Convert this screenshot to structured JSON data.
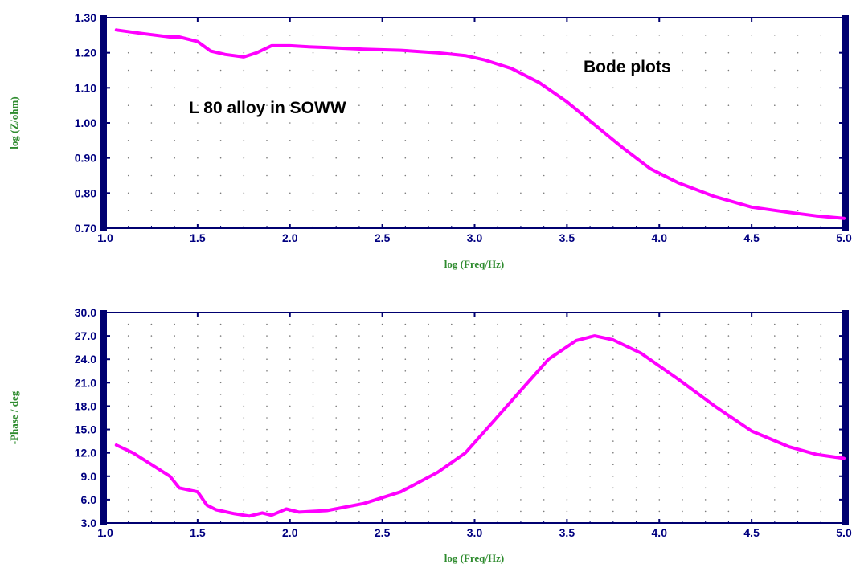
{
  "chart_data": [
    {
      "type": "line",
      "title": "",
      "xlabel": "log (Freq/Hz)",
      "ylabel": "log (Z/ohm)",
      "xlim": [
        1.0,
        5.0
      ],
      "ylim": [
        0.7,
        1.3
      ],
      "xticks": [
        "1.0",
        "1.5",
        "2.0",
        "2.5",
        "3.0",
        "3.5",
        "4.0",
        "4.5",
        "5.0"
      ],
      "yticks": [
        "0.70",
        "0.80",
        "0.90",
        "1.00",
        "1.10",
        "1.20",
        "1.30"
      ],
      "grid": true,
      "annotations": [
        "Bode plots",
        "L 80 alloy in SOWW"
      ],
      "series": [
        {
          "color": "#ff00ff",
          "x": [
            1.06,
            1.2,
            1.35,
            1.4,
            1.5,
            1.57,
            1.65,
            1.75,
            1.82,
            1.9,
            2.0,
            2.1,
            2.2,
            2.4,
            2.6,
            2.8,
            2.95,
            3.05,
            3.2,
            3.35,
            3.5,
            3.65,
            3.8,
            3.95,
            4.1,
            4.3,
            4.5,
            4.7,
            4.85,
            5.0
          ],
          "y": [
            1.265,
            1.255,
            1.245,
            1.245,
            1.232,
            1.205,
            1.195,
            1.188,
            1.2,
            1.22,
            1.22,
            1.217,
            1.215,
            1.21,
            1.207,
            1.2,
            1.192,
            1.18,
            1.155,
            1.115,
            1.06,
            0.995,
            0.93,
            0.87,
            0.83,
            0.79,
            0.76,
            0.745,
            0.735,
            0.728
          ]
        }
      ]
    },
    {
      "type": "line",
      "title": "",
      "xlabel": "log (Freq/Hz)",
      "ylabel": "-Phase / deg",
      "xlim": [
        1.0,
        5.0
      ],
      "ylim": [
        3.0,
        30.0
      ],
      "xticks": [
        "1.0",
        "1.5",
        "2.0",
        "2.5",
        "3.0",
        "3.5",
        "4.0",
        "4.5",
        "5.0"
      ],
      "yticks": [
        "3.0",
        "6.0",
        "9.0",
        "12.0",
        "15.0",
        "18.0",
        "21.0",
        "24.0",
        "27.0",
        "30.0"
      ],
      "grid": true,
      "series": [
        {
          "color": "#ff00ff",
          "x": [
            1.06,
            1.15,
            1.25,
            1.35,
            1.4,
            1.5,
            1.55,
            1.6,
            1.7,
            1.78,
            1.85,
            1.9,
            1.98,
            2.05,
            2.2,
            2.4,
            2.6,
            2.8,
            2.95,
            3.1,
            3.25,
            3.4,
            3.55,
            3.65,
            3.75,
            3.9,
            4.1,
            4.3,
            4.5,
            4.7,
            4.85,
            5.0
          ],
          "y": [
            13.0,
            12.0,
            10.5,
            9.0,
            7.5,
            7.0,
            5.3,
            4.7,
            4.2,
            3.9,
            4.3,
            4.0,
            4.8,
            4.4,
            4.6,
            5.5,
            7.0,
            9.5,
            12.0,
            16.0,
            20.0,
            24.0,
            26.4,
            27.0,
            26.5,
            24.8,
            21.5,
            18.0,
            14.8,
            12.8,
            11.8,
            11.3
          ]
        }
      ]
    }
  ]
}
